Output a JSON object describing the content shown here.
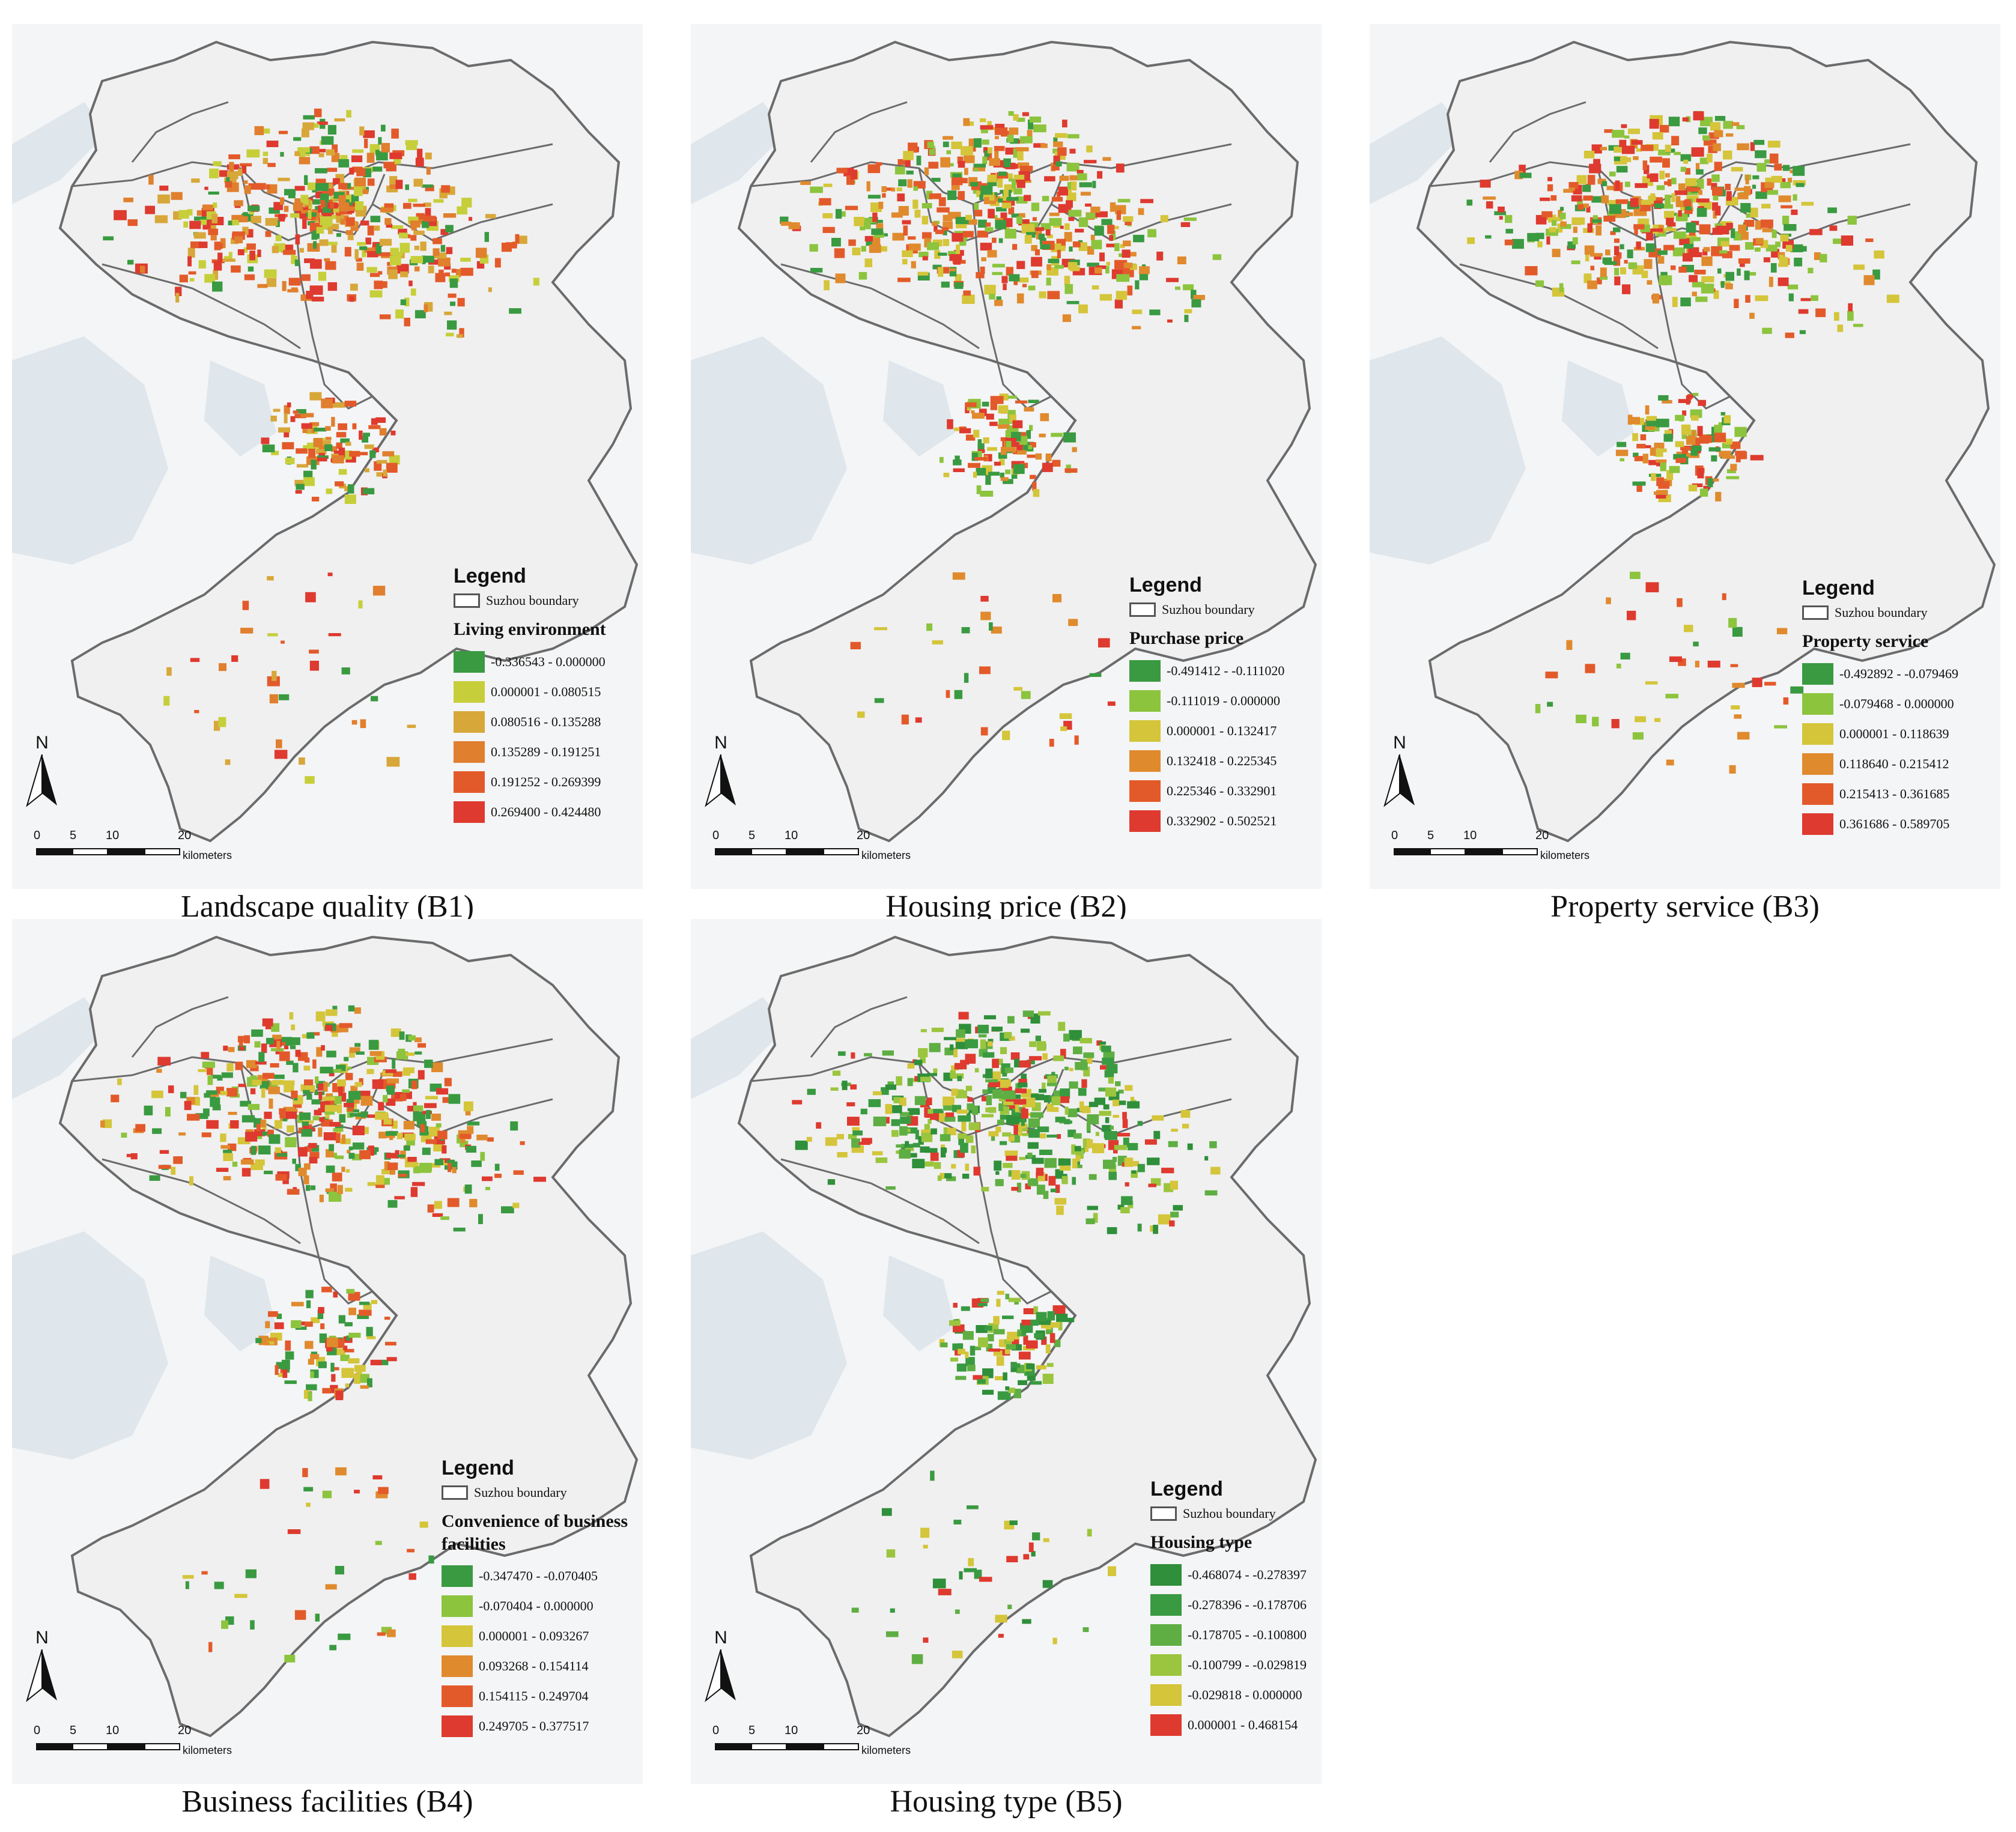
{
  "common": {
    "legend_title": "Legend",
    "boundary_label": "Suzhou boundary",
    "north_label": "N",
    "scale_ticks": [
      "0",
      "5",
      "10",
      "20"
    ],
    "scale_unit": "kilometers"
  },
  "panels": [
    {
      "caption": "Landscape quality (B1)",
      "field": "Living environment",
      "classes": [
        {
          "label": "-0.336543 - 0.000000",
          "color": "#3a9a41"
        },
        {
          "label": "0.000001 - 0.080515",
          "color": "#c6cf3a"
        },
        {
          "label": "0.080516 - 0.135288",
          "color": "#d8a73a"
        },
        {
          "label": "0.135289 - 0.191251",
          "color": "#e07f2e"
        },
        {
          "label": "0.191252 - 0.269399",
          "color": "#e35a2a"
        },
        {
          "label": "0.269400 - 0.424480",
          "color": "#de3a2f"
        }
      ]
    },
    {
      "caption": "Housing price (B2)",
      "field": "Purchase price",
      "classes": [
        {
          "label": "-0.491412 - -0.111020",
          "color": "#3a9a41"
        },
        {
          "label": "-0.111019 - 0.000000",
          "color": "#8cc43e"
        },
        {
          "label": "0.000001 - 0.132417",
          "color": "#d4c53a"
        },
        {
          "label": "0.132418 - 0.225345",
          "color": "#e08a2e"
        },
        {
          "label": "0.225346 - 0.332901",
          "color": "#e35a2a"
        },
        {
          "label": "0.332902 - 0.502521",
          "color": "#de3a2f"
        }
      ]
    },
    {
      "caption": "Property service (B3)",
      "field": "Property service",
      "classes": [
        {
          "label": "-0.492892 - -0.079469",
          "color": "#3a9a41"
        },
        {
          "label": "-0.079468 - 0.000000",
          "color": "#8cc43e"
        },
        {
          "label": "0.000001 - 0.118639",
          "color": "#d4c53a"
        },
        {
          "label": "0.118640 - 0.215412",
          "color": "#e08a2e"
        },
        {
          "label": "0.215413 - 0.361685",
          "color": "#e35a2a"
        },
        {
          "label": "0.361686 - 0.589705",
          "color": "#de3a2f"
        }
      ]
    },
    {
      "caption": "Business facilities (B4)",
      "field": "Convenience of business facilities",
      "classes": [
        {
          "label": "-0.347470 - -0.070405",
          "color": "#3a9a41"
        },
        {
          "label": "-0.070404 - 0.000000",
          "color": "#8cc43e"
        },
        {
          "label": "0.000001 - 0.093267",
          "color": "#d4c53a"
        },
        {
          "label": "0.093268 - 0.154114",
          "color": "#e08a2e"
        },
        {
          "label": "0.154115 - 0.249704",
          "color": "#e35a2a"
        },
        {
          "label": "0.249705 - 0.377517",
          "color": "#de3a2f"
        }
      ]
    },
    {
      "caption": "Housing type (B5)",
      "field": "Housing type",
      "classes": [
        {
          "label": "-0.468074 - -0.278397",
          "color": "#2f8f3a"
        },
        {
          "label": "-0.278396 - -0.178706",
          "color": "#3a9a41"
        },
        {
          "label": "-0.178705 - -0.100800",
          "color": "#5fae43"
        },
        {
          "label": "-0.100799 - -0.029819",
          "color": "#9bc53e"
        },
        {
          "label": "-0.029818 - 0.000000",
          "color": "#d4c53a"
        },
        {
          "label": "0.000001 - 0.468154",
          "color": "#de3a2f"
        }
      ]
    }
  ]
}
